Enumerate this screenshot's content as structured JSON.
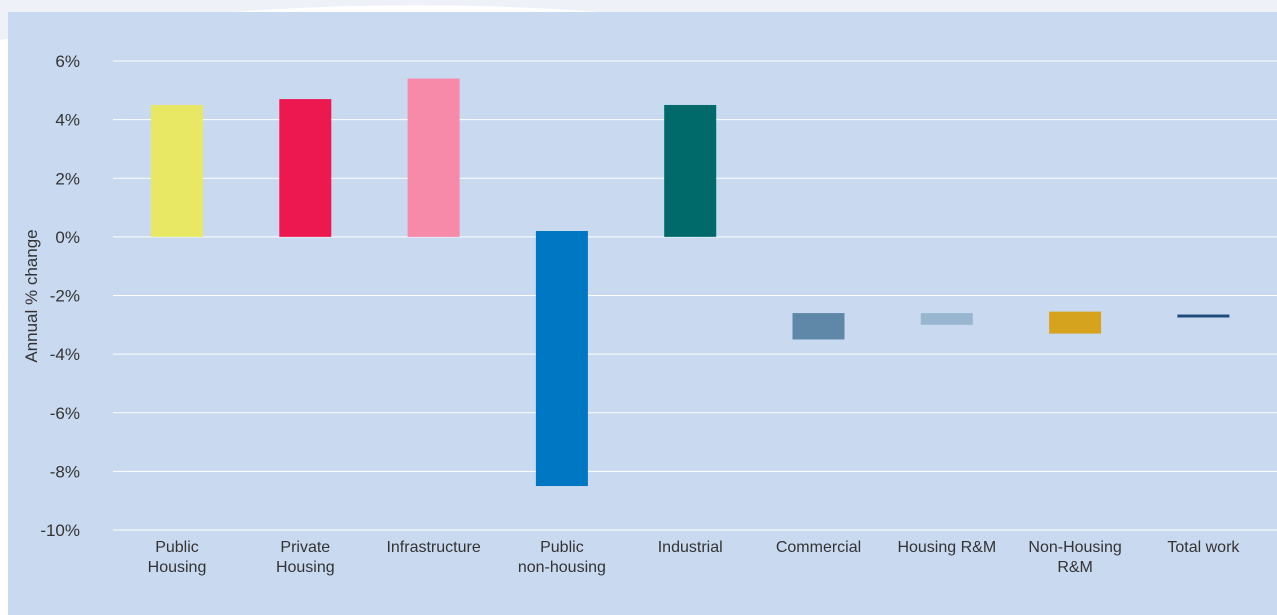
{
  "chart_data": {
    "type": "bar",
    "categories": [
      [
        "Public",
        "Housing"
      ],
      [
        "Private",
        "Housing"
      ],
      [
        "Infrastructure"
      ],
      [
        "Public",
        "non-housing"
      ],
      [
        "Industrial"
      ],
      [
        "Commercial"
      ],
      [
        "Housing R&M"
      ],
      [
        "Non-Housing",
        "R&M"
      ],
      [
        "Total work"
      ]
    ],
    "bars": [
      {
        "low": 0,
        "high": 4.5,
        "color": "#e8e864"
      },
      {
        "low": 0,
        "high": 4.7,
        "color": "#ee1851"
      },
      {
        "low": 0,
        "high": 5.4,
        "color": "#f68aa8"
      },
      {
        "low": -8.5,
        "high": 0.2,
        "color": "#0077c2"
      },
      {
        "low": 0,
        "high": 4.5,
        "color": "#006a6a"
      },
      {
        "low": -3.5,
        "high": -2.6,
        "color": "#5f87a8"
      },
      {
        "low": -3.0,
        "high": -2.6,
        "color": "#98b6cf"
      },
      {
        "low": -3.3,
        "high": -2.55,
        "color": "#d6a31e"
      },
      {
        "low": -2.75,
        "high": -2.65,
        "color": "#1f4a7a"
      }
    ],
    "yticks": [
      6,
      4,
      2,
      0,
      -2,
      -4,
      -6,
      -8,
      -10
    ],
    "ytick_labels": [
      "6%",
      "4%",
      "2%",
      "0%",
      "-2%",
      "-4%",
      "-6%",
      "-8%",
      "-10%"
    ],
    "ylabel": "Annual % change",
    "ylim": [
      -10,
      6
    ],
    "grid": true,
    "colors": {
      "panel_background": "#c9d9f0",
      "gridline": "#ffffff",
      "text": "#333333"
    }
  }
}
